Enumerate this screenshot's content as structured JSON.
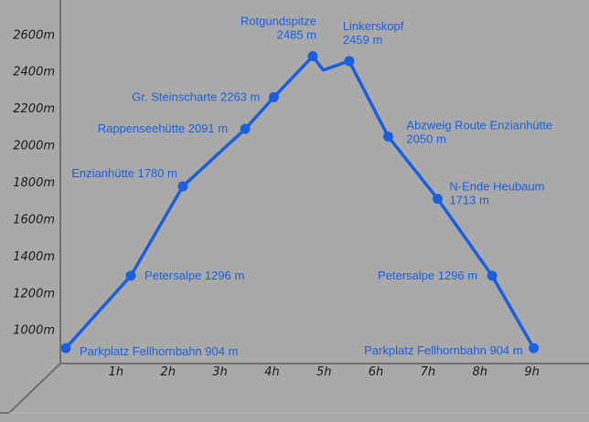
{
  "chart_data": {
    "type": "line",
    "xlabel": "",
    "ylabel": "",
    "x_tick_labels": [
      "1h",
      "2h",
      "3h",
      "4h",
      "5h",
      "6h",
      "7h",
      "8h",
      "9h"
    ],
    "x_ticks": [
      1,
      2,
      3,
      4,
      5,
      6,
      7,
      8,
      9
    ],
    "y_tick_labels": [
      "1000m",
      "1200m",
      "1400m",
      "1600m",
      "1800m",
      "2000m",
      "2200m",
      "2400m",
      "2600m"
    ],
    "y_ticks": [
      1000,
      1200,
      1400,
      1600,
      1800,
      2000,
      2200,
      2400,
      2600
    ],
    "xlim": [
      0,
      9.5
    ],
    "ylim": [
      850,
      2750
    ],
    "grid": false,
    "colors": {
      "line": "#1a5fe0",
      "point": "#1a5fe0",
      "label": "#1a5fe0",
      "background": "#a9a9a9",
      "tick_text": "#1a1a1a"
    },
    "series": [
      {
        "points": [
          {
            "x": 0.0,
            "y": 904,
            "marker": true,
            "label": [
              "Parkplatz Fellhornbahn 904 m"
            ]
          },
          {
            "x": 1.25,
            "y": 1296,
            "marker": true,
            "label": [
              "Petersalpe 1296 m"
            ]
          },
          {
            "x": 2.25,
            "y": 1780,
            "marker": true,
            "label": [
              "Enzianhütte 1780 m"
            ]
          },
          {
            "x": 3.45,
            "y": 2091,
            "marker": true,
            "label": [
              "Rappenseehütte 2091 m"
            ]
          },
          {
            "x": 4.0,
            "y": 2263,
            "marker": true,
            "label": [
              "Gr. Steinscharte 2263 m"
            ]
          },
          {
            "x": 4.75,
            "y": 2485,
            "marker": true,
            "label": [
              "Rotgundspitze",
              "2485 m"
            ]
          },
          {
            "x": 4.95,
            "y": 2410,
            "marker": false
          },
          {
            "x": 5.45,
            "y": 2459,
            "marker": true,
            "label": [
              "Linkerskopf",
              "2459 m"
            ]
          },
          {
            "x": 6.2,
            "y": 2050,
            "marker": true,
            "label": [
              "Abzweig Route Enzianhütte",
              "2050 m"
            ]
          },
          {
            "x": 7.15,
            "y": 1713,
            "marker": true,
            "label": [
              "N-Ende Heubaum",
              "1713 m"
            ]
          },
          {
            "x": 8.2,
            "y": 1296,
            "marker": true,
            "label": [
              "Petersalpe 1296 m"
            ]
          },
          {
            "x": 9.0,
            "y": 904,
            "marker": true,
            "label": [
              "Parkplatz Fellhornbahn 904 m"
            ]
          }
        ]
      }
    ]
  }
}
